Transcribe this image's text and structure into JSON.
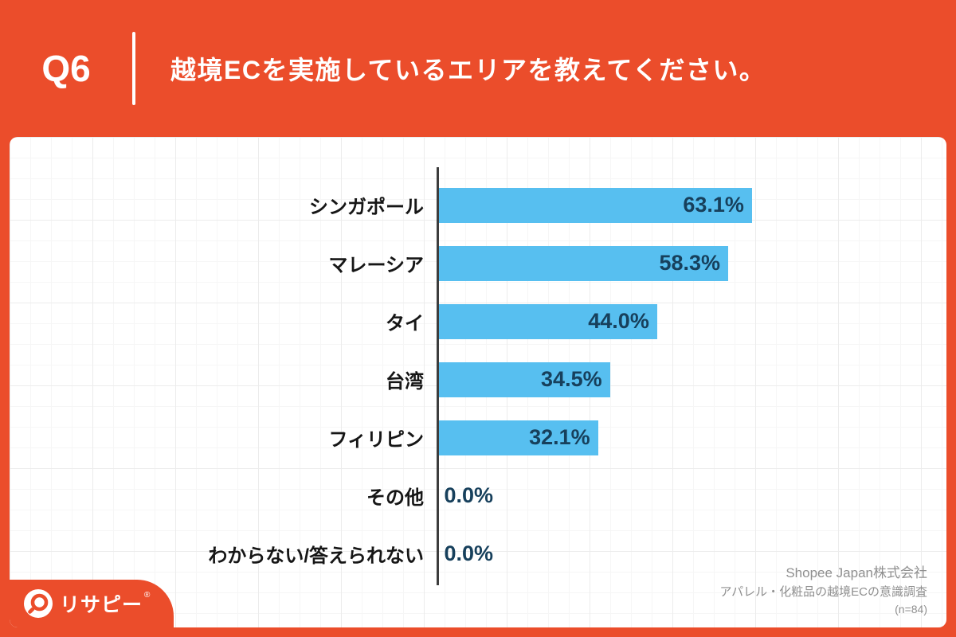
{
  "header": {
    "question_no": "Q6",
    "title": "越境ECを実施しているエリアを教えてください。"
  },
  "chart_data": {
    "type": "bar",
    "orientation": "horizontal",
    "categories": [
      "シンガポール",
      "マレーシア",
      "タイ",
      "台湾",
      "フィリピン",
      "その他",
      "わからない/答えられない"
    ],
    "values": [
      63.1,
      58.3,
      44.0,
      34.5,
      32.1,
      0.0,
      0.0
    ],
    "value_labels": [
      "63.1%",
      "58.3%",
      "44.0%",
      "34.5%",
      "32.1%",
      "0.0%",
      "0.0%"
    ],
    "unit": "%",
    "xlim": [
      0,
      100
    ],
    "grid": true,
    "legend": false,
    "bar_color": "#57BFF0",
    "value_label_color": "#17405C"
  },
  "source": {
    "lines": [
      "Shopee Japan株式会社",
      "アパレル・化粧品の越境ECの意識調査",
      "(n=84)"
    ]
  },
  "logo": {
    "text": "リサピー",
    "symbol": "®"
  },
  "colors": {
    "background_orange": "#EB4D2B",
    "card_white": "#FFFFFF",
    "bar_blue": "#57BFF0",
    "value_navy": "#17405C",
    "source_gray": "#8F8F8F"
  }
}
